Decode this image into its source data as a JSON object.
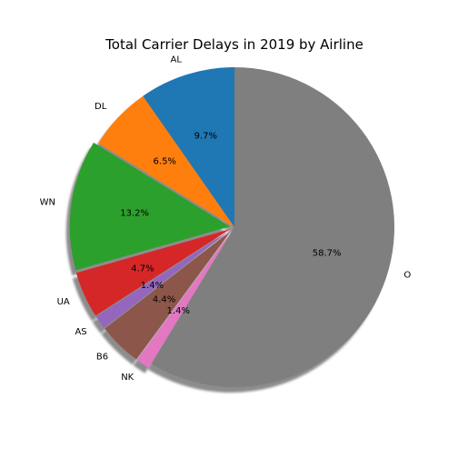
{
  "chart_data": {
    "type": "pie",
    "title": "Total Carrier Delays in 2019 by Airline",
    "start_angle_deg": 90,
    "direction": "counterclockwise",
    "shadow": true,
    "slices": [
      {
        "label": "AL",
        "percent": 9.7,
        "display": "9.7%",
        "color": "#1f77b4",
        "explode": 0
      },
      {
        "label": "DL",
        "percent": 6.5,
        "display": "6.5%",
        "color": "#ff7f0e",
        "explode": 0
      },
      {
        "label": "WN",
        "percent": 13.2,
        "display": "13.2%",
        "color": "#2ca02c",
        "explode": 0.03
      },
      {
        "label": "UA",
        "percent": 4.7,
        "display": "4.7%",
        "color": "#d62728",
        "explode": 0.03
      },
      {
        "label": "AS",
        "percent": 1.4,
        "display": "1.4%",
        "color": "#9467bd",
        "explode": 0.03
      },
      {
        "label": "B6",
        "percent": 4.4,
        "display": "4.4%",
        "color": "#8c564b",
        "explode": 0.03
      },
      {
        "label": "NK",
        "percent": 1.4,
        "display": "1.4%",
        "color": "#e377c2",
        "explode": 0.03
      },
      {
        "label": "O",
        "percent": 58.7,
        "display": "58.7%",
        "color": "#7f7f7f",
        "explode": 0
      }
    ]
  }
}
